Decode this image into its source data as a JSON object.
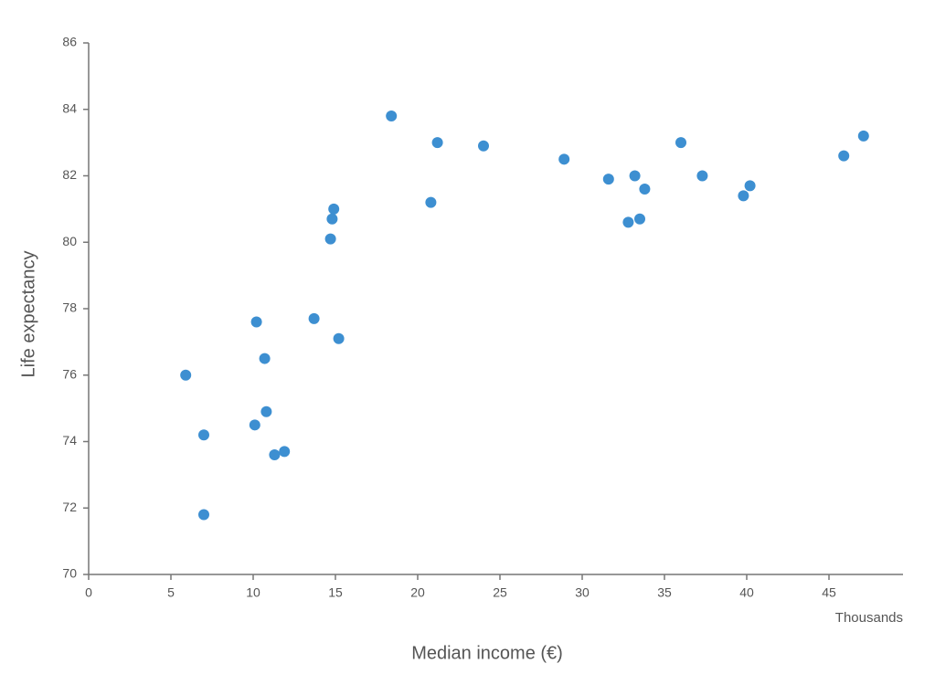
{
  "chart_data": {
    "type": "scatter",
    "x_label": "Median income (€)",
    "y_label": "Life expectancy",
    "x_unit_label": "Thousands",
    "color": "#3d8fd1",
    "x": [
      5.9,
      7.0,
      7.0,
      10.1,
      10.2,
      10.7,
      10.8,
      11.3,
      11.9,
      13.7,
      15.2,
      14.7,
      14.8,
      14.9,
      18.4,
      20.8,
      21.2,
      24.0,
      28.9,
      31.6,
      33.2,
      33.8,
      32.8,
      33.5,
      36.0,
      37.3,
      39.8,
      40.2,
      45.9,
      47.1
    ],
    "values": [
      76.0,
      74.2,
      71.8,
      74.5,
      77.6,
      76.5,
      74.9,
      73.6,
      73.7,
      77.7,
      77.1,
      80.1,
      80.7,
      81.0,
      83.8,
      81.2,
      83.0,
      82.9,
      82.5,
      81.9,
      82.0,
      81.6,
      80.6,
      80.7,
      83.0,
      82.0,
      81.4,
      81.7,
      82.6,
      83.2
    ],
    "xlim": [
      0,
      49.5
    ],
    "xticks": [
      0,
      5,
      10,
      15,
      20,
      25,
      30,
      35,
      40,
      45
    ],
    "ylim": [
      70,
      86
    ],
    "yticks": [
      70,
      72,
      74,
      76,
      78,
      80,
      82,
      84,
      86
    ],
    "grid": false
  }
}
